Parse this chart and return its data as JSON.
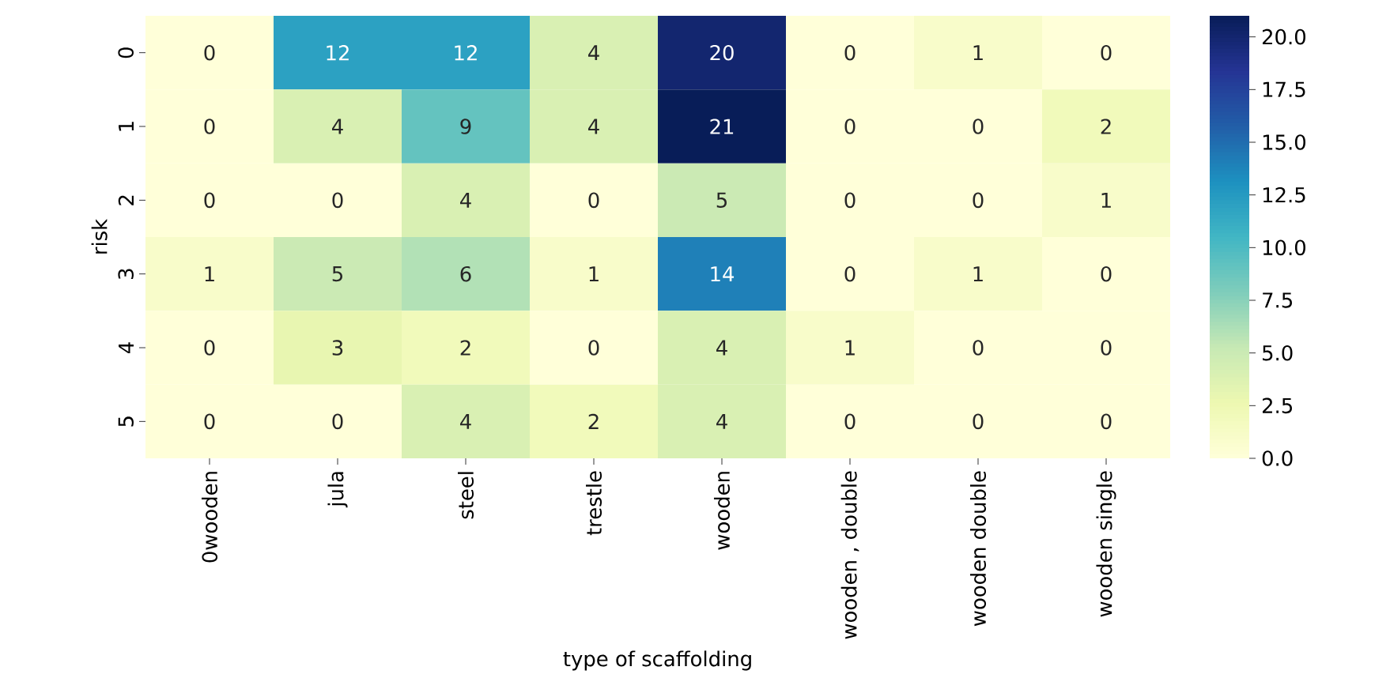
{
  "chart_data": {
    "type": "heatmap",
    "xlabel": "type of scaffolding",
    "ylabel": "risk",
    "categories": [
      "0wooden",
      "jula",
      "steel",
      "trestle",
      "wooden",
      "wooden , double",
      "wooden double",
      "wooden single"
    ],
    "y_categories": [
      "0",
      "1",
      "2",
      "3",
      "4",
      "5"
    ],
    "cells": [
      [
        0,
        12,
        12,
        4,
        20,
        0,
        1,
        0
      ],
      [
        0,
        4,
        9,
        4,
        21,
        0,
        0,
        2
      ],
      [
        0,
        0,
        4,
        0,
        5,
        0,
        0,
        1
      ],
      [
        1,
        5,
        6,
        1,
        14,
        0,
        1,
        0
      ],
      [
        0,
        3,
        2,
        0,
        4,
        1,
        0,
        0
      ],
      [
        0,
        0,
        4,
        2,
        4,
        0,
        0,
        0
      ]
    ],
    "data_labels": true,
    "clim": [
      0,
      21
    ],
    "cticks": [
      {
        "value": 0,
        "label": "0.0"
      },
      {
        "value": 2.5,
        "label": "2.5"
      },
      {
        "value": 5,
        "label": "5.0"
      },
      {
        "value": 7.5,
        "label": "7.5"
      },
      {
        "value": 10,
        "label": "10.0"
      },
      {
        "value": 12.5,
        "label": "12.5"
      },
      {
        "value": 15,
        "label": "15.0"
      },
      {
        "value": 17.5,
        "label": "17.5"
      },
      {
        "value": 20,
        "label": "20.0"
      }
    ]
  }
}
